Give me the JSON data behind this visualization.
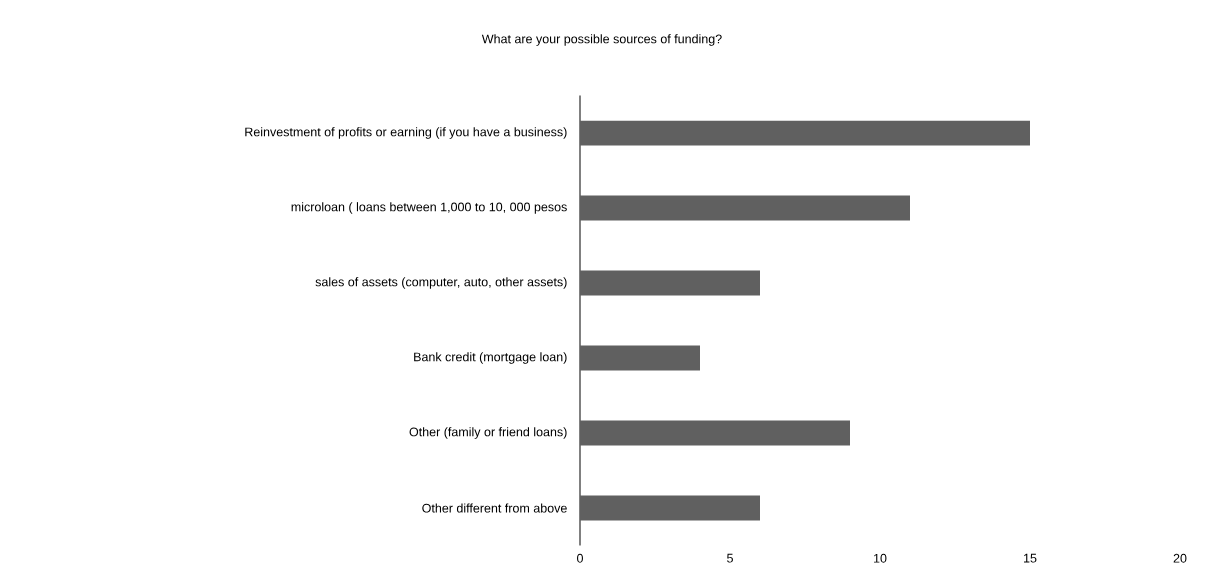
{
  "chart_data": {
    "type": "bar",
    "orientation": "horizontal",
    "title": "What are your possible sources of funding?",
    "categories": [
      "Reinvestment of profits or earning (if you have a business)",
      "microloan ( loans between 1,000 to 10, 000 pesos",
      "sales of assets (computer, auto, other assets)",
      "Bank credit (mortgage loan)",
      "Other (family or friend loans)",
      "Other different from above"
    ],
    "values": [
      15,
      11,
      6,
      4,
      9,
      6
    ],
    "color": "#606060",
    "xlim": [
      0,
      20
    ],
    "xticks": [
      0,
      5,
      10,
      15,
      20
    ]
  }
}
